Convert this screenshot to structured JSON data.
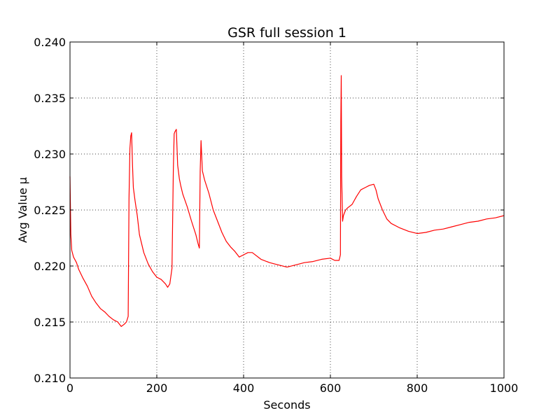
{
  "chart_data": {
    "type": "line",
    "title": "GSR full session 1",
    "xlabel": "Seconds",
    "ylabel": "Avg Value µ",
    "xlim": [
      0,
      1000
    ],
    "ylim": [
      0.21,
      0.24
    ],
    "xticks": [
      "0",
      "200",
      "400",
      "600",
      "800",
      "1000"
    ],
    "yticks": [
      "0.210",
      "0.215",
      "0.220",
      "0.225",
      "0.230",
      "0.235",
      "0.240"
    ],
    "grid": true,
    "series": [
      {
        "color": "#ff0000",
        "x": [
          0,
          2,
          4,
          8,
          15,
          20,
          30,
          40,
          50,
          60,
          70,
          80,
          90,
          100,
          110,
          118,
          125,
          130,
          134,
          136,
          138,
          140,
          142,
          144,
          146,
          150,
          155,
          160,
          170,
          180,
          190,
          200,
          210,
          220,
          225,
          230,
          235,
          238,
          240,
          242,
          245,
          248,
          252,
          255,
          260,
          270,
          280,
          290,
          295,
          298,
          300,
          302,
          305,
          310,
          320,
          330,
          340,
          350,
          360,
          370,
          380,
          390,
          400,
          410,
          420,
          440,
          460,
          480,
          500,
          520,
          540,
          560,
          580,
          600,
          610,
          620,
          623,
          624,
          625,
          626,
          628,
          630,
          635,
          640,
          650,
          660,
          670,
          680,
          690,
          700,
          705,
          710,
          720,
          730,
          740,
          760,
          780,
          800,
          820,
          840,
          860,
          880,
          900,
          920,
          940,
          960,
          980,
          1000
        ],
        "y": [
          0.228,
          0.2228,
          0.2214,
          0.2208,
          0.2203,
          0.2197,
          0.2189,
          0.2182,
          0.2173,
          0.2167,
          0.2162,
          0.2159,
          0.2155,
          0.2152,
          0.215,
          0.2146,
          0.2148,
          0.215,
          0.2155,
          0.226,
          0.2305,
          0.2316,
          0.2319,
          0.229,
          0.227,
          0.2258,
          0.2245,
          0.2228,
          0.2212,
          0.2202,
          0.2195,
          0.219,
          0.2188,
          0.2184,
          0.2181,
          0.2184,
          0.2198,
          0.2285,
          0.2318,
          0.232,
          0.2322,
          0.229,
          0.2278,
          0.2272,
          0.2264,
          0.2253,
          0.224,
          0.2228,
          0.222,
          0.2216,
          0.2285,
          0.2312,
          0.2285,
          0.2277,
          0.2265,
          0.225,
          0.224,
          0.223,
          0.2222,
          0.2217,
          0.2213,
          0.2208,
          0.221,
          0.2212,
          0.2212,
          0.2206,
          0.2203,
          0.2201,
          0.2199,
          0.2201,
          0.2203,
          0.2204,
          0.2206,
          0.2207,
          0.2205,
          0.2205,
          0.221,
          0.233,
          0.237,
          0.228,
          0.224,
          0.2245,
          0.225,
          0.2252,
          0.2255,
          0.2262,
          0.2268,
          0.227,
          0.2272,
          0.2273,
          0.2268,
          0.226,
          0.225,
          0.2242,
          0.2238,
          0.2234,
          0.2231,
          0.2229,
          0.223,
          0.2232,
          0.2233,
          0.2235,
          0.2237,
          0.2239,
          0.224,
          0.2242,
          0.2243,
          0.2245
        ]
      }
    ]
  }
}
